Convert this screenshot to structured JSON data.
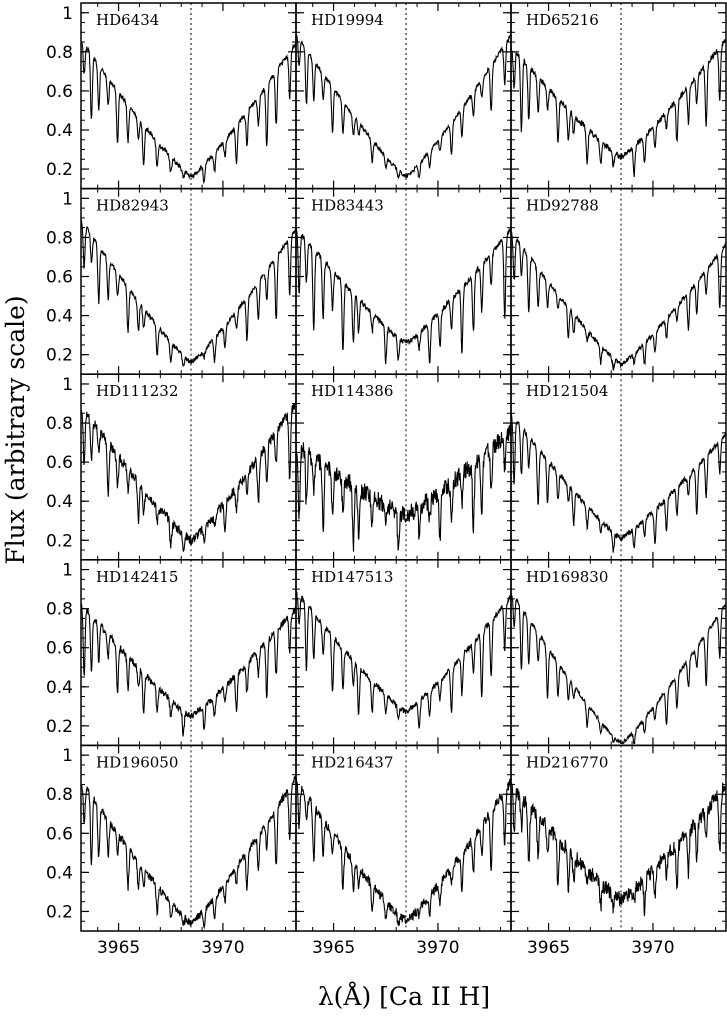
{
  "chart_data": {
    "type": "line",
    "grid": false,
    "rows": 5,
    "cols": 3,
    "xlabel": "λ(Å)  [Ca II H]",
    "ylabel": "Flux (arbitrary scale)",
    "xlim": [
      3963.2,
      3973.5
    ],
    "ylim": [
      0.1,
      1.05
    ],
    "xticks": [
      3965,
      3970
    ],
    "xtick_labels": [
      "3965",
      "3970"
    ],
    "yticks": [
      0.2,
      0.4,
      0.6,
      0.8,
      1.0
    ],
    "ytick_labels": [
      "0.2",
      "0.4",
      "0.6",
      "0.8",
      "1"
    ],
    "reference_line_x": 3968.47,
    "line_center": 3968.47,
    "panels": [
      {
        "name": "HD6434",
        "left": 0.85,
        "right": 0.84,
        "min": 0.16,
        "depth": 0.45,
        "noise": 0.012
      },
      {
        "name": "HD19994",
        "left": 0.88,
        "right": 0.88,
        "min": 0.16,
        "depth": 0.35,
        "noise": 0.01
      },
      {
        "name": "HD65216",
        "left": 0.82,
        "right": 0.86,
        "min": 0.26,
        "depth": 0.42,
        "noise": 0.014
      },
      {
        "name": "HD82943",
        "left": 0.88,
        "right": 0.84,
        "min": 0.16,
        "depth": 0.42,
        "noise": 0.012
      },
      {
        "name": "HD83443",
        "left": 0.84,
        "right": 0.84,
        "min": 0.26,
        "depth": 0.55,
        "noise": 0.014
      },
      {
        "name": "HD92788",
        "left": 0.82,
        "right": 0.76,
        "min": 0.15,
        "depth": 0.35,
        "noise": 0.012
      },
      {
        "name": "HD111232",
        "left": 0.88,
        "right": 0.9,
        "min": 0.2,
        "depth": 0.4,
        "noise": 0.025
      },
      {
        "name": "HD114386",
        "left": 0.68,
        "right": 0.76,
        "min": 0.33,
        "depth": 0.45,
        "noise": 0.045
      },
      {
        "name": "HD121504",
        "left": 0.84,
        "right": 0.74,
        "min": 0.21,
        "depth": 0.4,
        "noise": 0.014
      },
      {
        "name": "HD142415",
        "left": 0.82,
        "right": 0.8,
        "min": 0.25,
        "depth": 0.4,
        "noise": 0.018
      },
      {
        "name": "HD147513",
        "left": 0.88,
        "right": 0.86,
        "min": 0.27,
        "depth": 0.45,
        "noise": 0.014
      },
      {
        "name": "HD169830",
        "left": 0.88,
        "right": 0.82,
        "min": 0.11,
        "depth": 0.4,
        "noise": 0.01
      },
      {
        "name": "HD196050",
        "left": 0.86,
        "right": 0.88,
        "min": 0.14,
        "depth": 0.42,
        "noise": 0.02
      },
      {
        "name": "HD216437",
        "left": 0.86,
        "right": 0.86,
        "min": 0.15,
        "depth": 0.4,
        "noise": 0.025
      },
      {
        "name": "HD216770",
        "left": 0.84,
        "right": 0.84,
        "min": 0.26,
        "depth": 0.4,
        "noise": 0.04
      }
    ],
    "absorption_lines": [
      3963.35,
      3963.7,
      3964.05,
      3964.5,
      3964.95,
      3965.45,
      3965.95,
      3966.2,
      3966.85,
      3967.5,
      3968.1,
      3969.1,
      3969.6,
      3970.1,
      3970.65,
      3971.15,
      3971.7,
      3972.1,
      3972.55,
      3973.2
    ]
  }
}
